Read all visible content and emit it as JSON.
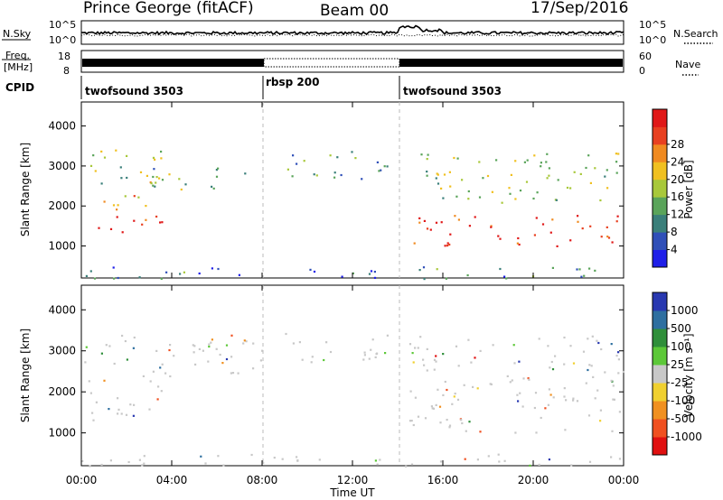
{
  "header": {
    "station": "Prince George (fitACF)",
    "beam": "Beam 00",
    "date": "17/Sep/2016"
  },
  "top_panels": {
    "nsky_label": "N.Sky",
    "nsearch_label": "N.Search",
    "noise_ticks": [
      "10^5",
      "10^0"
    ],
    "freq_label": "Freq.",
    "freq_unit": "[MHz]",
    "freq_ticks": [
      18,
      8
    ],
    "nave_ticks": [
      60,
      0
    ],
    "nave_label": "Nave",
    "cpid_label": "CPID",
    "cpid_segments": [
      {
        "name": "twofsound 3503",
        "start_h": 0,
        "end_h": 8
      },
      {
        "name": "rbsp 200",
        "start_h": 8,
        "end_h": 14
      },
      {
        "name": "twofsound 3503",
        "start_h": 14,
        "end_h": 24
      }
    ]
  },
  "chart_data": [
    {
      "type": "heatmap",
      "ylabel": "Slant Range [km]",
      "xlabel": "Time UT",
      "xlim": [
        0,
        24
      ],
      "ylim": [
        200,
        4600
      ],
      "y_ticks": [
        1000,
        2000,
        3000,
        4000
      ],
      "x_tick_labels": [
        "00:00",
        "04:00",
        "08:00",
        "12:00",
        "16:00",
        "20:00",
        "00:00"
      ],
      "colorbar_label": "Power [dB]",
      "colorbar_ticks": [
        "4",
        "8",
        "12",
        "16",
        "20",
        "24",
        "28"
      ],
      "colors": [
        "#1f1fe8",
        "#2f4fb8",
        "#3a7f7a",
        "#5aa45a",
        "#a8c83a",
        "#f0c020",
        "#f08a20",
        "#e84020",
        "#e01818"
      ],
      "scatter_bands": [
        {
          "t": [
            0,
            3.6
          ],
          "r": [
            1300,
            1800
          ],
          "level": 0.95
        },
        {
          "t": [
            0,
            3.6
          ],
          "r": [
            1900,
            2300
          ],
          "level": 0.7
        },
        {
          "t": [
            0,
            3.6
          ],
          "r": [
            2500,
            3500
          ],
          "level": 0.5
        },
        {
          "t": [
            3,
            8
          ],
          "r": [
            2400,
            3000
          ],
          "level": 0.4
        },
        {
          "t": [
            9,
            13.6
          ],
          "r": [
            2700,
            3500
          ],
          "level": 0.35
        },
        {
          "t": [
            14.5,
            24
          ],
          "r": [
            1000,
            1800
          ],
          "level": 0.9
        },
        {
          "t": [
            15,
            24
          ],
          "r": [
            2100,
            3400
          ],
          "level": 0.45
        },
        {
          "t": [
            0,
            24
          ],
          "r": [
            200,
            500
          ],
          "level": 0.3
        }
      ]
    },
    {
      "type": "heatmap",
      "ylabel": "Slant Range [km]",
      "xlabel": "Time UT",
      "xlim": [
        0,
        24
      ],
      "ylim": [
        200,
        4600
      ],
      "y_ticks": [
        1000,
        2000,
        3000,
        4000
      ],
      "x_tick_labels": [
        "00:00",
        "04:00",
        "08:00",
        "12:00",
        "16:00",
        "20:00",
        "00:00"
      ],
      "colorbar_label": "Velocity [m s⁻¹]",
      "colorbar_ticks": [
        "1000",
        "500",
        "100",
        "25",
        "-25",
        "-100",
        "-500",
        "-1000"
      ],
      "colors": [
        "#2838b0",
        "#2e6fa0",
        "#2f8f3a",
        "#5cc838",
        "#c8c8c8",
        "#f0d030",
        "#f09020",
        "#f05020",
        "#e01010"
      ],
      "scatter_bands": [
        {
          "t": [
            0,
            3.6
          ],
          "r": [
            1300,
            2300
          ],
          "level": 0.5
        },
        {
          "t": [
            0,
            8
          ],
          "r": [
            2400,
            3500
          ],
          "level": 0.5
        },
        {
          "t": [
            9,
            13.6
          ],
          "r": [
            2700,
            3500
          ],
          "level": 0.5
        },
        {
          "t": [
            14.5,
            24
          ],
          "r": [
            1000,
            3400
          ],
          "level": 0.5
        },
        {
          "t": [
            0,
            24
          ],
          "r": [
            200,
            500
          ],
          "level": 0.6
        }
      ]
    }
  ]
}
